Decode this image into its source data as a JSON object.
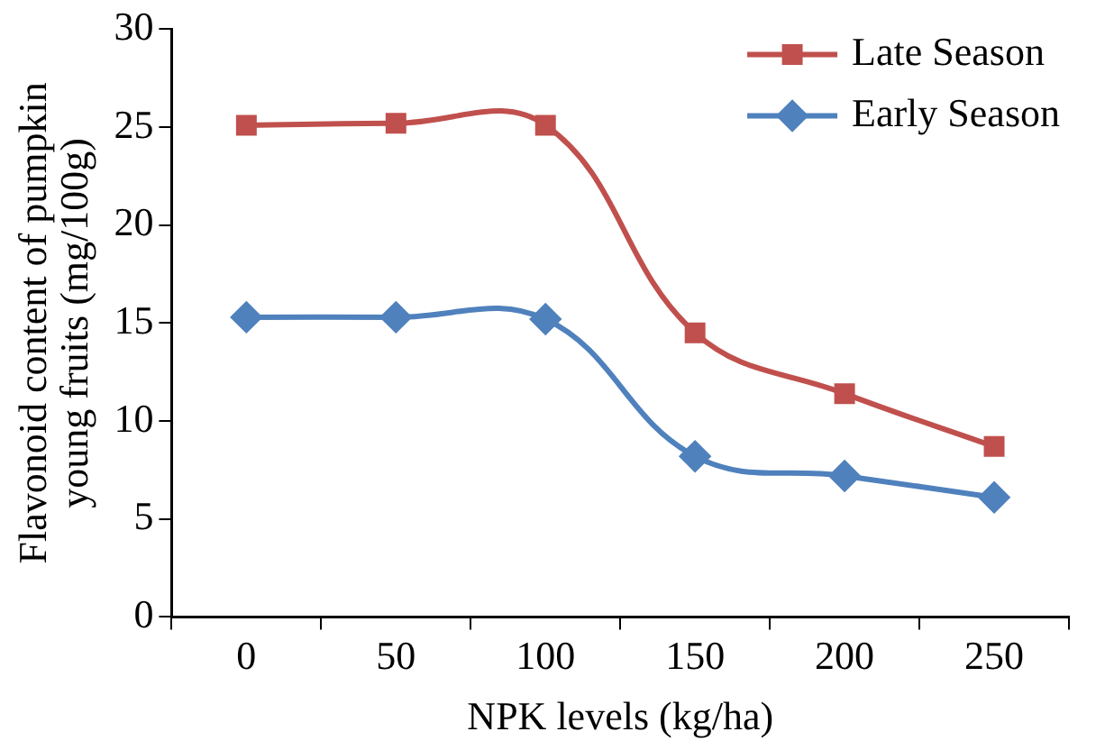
{
  "chart_data": {
    "type": "line",
    "xlabel": "NPK levels (kg/ha)",
    "ylabel": "Flavonoid content of pumpkin young fruits (mg/100g)",
    "categories": [
      "0",
      "50",
      "100",
      "150",
      "200",
      "250"
    ],
    "series": [
      {
        "name": "Late Season",
        "color": "#c0504d",
        "marker": "square",
        "values": [
          25.1,
          25.2,
          25.1,
          14.5,
          11.4,
          8.7
        ]
      },
      {
        "name": "Early Season",
        "color": "#4f81bd",
        "marker": "diamond",
        "values": [
          15.3,
          15.3,
          15.2,
          8.2,
          7.2,
          6.1
        ]
      }
    ],
    "ylim": [
      0,
      30
    ],
    "yticks": [
      0,
      5,
      10,
      15,
      20,
      25,
      30
    ],
    "grid": false,
    "legend": "top right"
  }
}
